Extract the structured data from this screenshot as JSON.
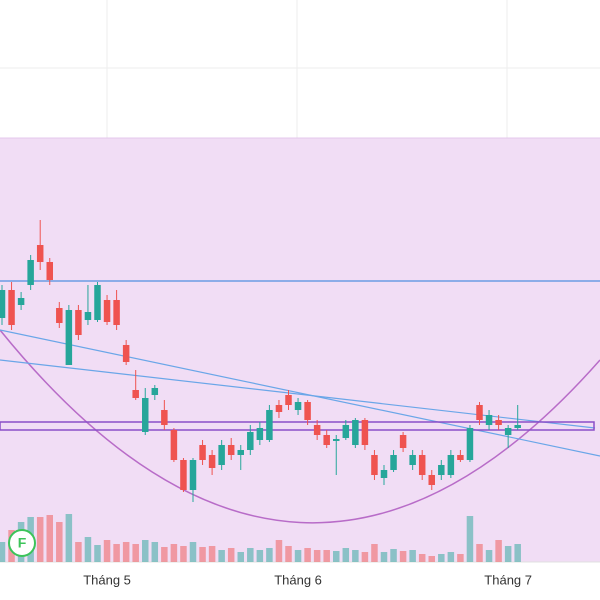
{
  "chart_data": {
    "type": "candlestick",
    "categories": [
      null,
      null,
      null,
      null,
      null,
      null,
      null,
      null,
      null,
      null,
      null,
      "Tháng 5",
      null,
      null,
      null,
      null,
      null,
      null,
      null,
      null,
      null,
      null,
      null,
      null,
      null,
      null,
      null,
      null,
      null,
      null,
      null,
      "Tháng 6",
      null,
      null,
      null,
      null,
      null,
      null,
      null,
      null,
      null,
      null,
      null,
      null,
      null,
      null,
      null,
      null,
      null,
      null,
      null,
      null,
      null,
      "Tháng 7",
      null
    ],
    "open": [
      28.2,
      31.0,
      29.5,
      31.5,
      35.5,
      33.8,
      29.2,
      23.5,
      29.0,
      28.0,
      28.0,
      30.0,
      30.0,
      25.5,
      21.0,
      16.8,
      20.5,
      19.0,
      17.0,
      14.0,
      11.0,
      15.5,
      14.5,
      13.5,
      15.5,
      14.5,
      15.0,
      16.0,
      16.0,
      19.5,
      20.5,
      19.0,
      19.8,
      17.5,
      16.5,
      15.9,
      16.2,
      15.5,
      18.0,
      14.5,
      12.2,
      13.0,
      16.5,
      13.5,
      14.5,
      12.5,
      12.5,
      12.5,
      14.5,
      14.0,
      19.5,
      17.5,
      18.0,
      16.5,
      17.2
    ],
    "high": [
      31.5,
      31.8,
      30.8,
      34.5,
      38.0,
      34.2,
      29.8,
      29.5,
      29.5,
      31.5,
      31.8,
      30.5,
      31.0,
      26.0,
      23.0,
      21.2,
      21.5,
      20.0,
      17.2,
      14.2,
      14.2,
      16.0,
      15.0,
      16.0,
      16.2,
      15.5,
      17.5,
      17.8,
      19.5,
      20.0,
      21.0,
      20.2,
      20.0,
      18.0,
      17.0,
      16.5,
      18.0,
      18.2,
      18.2,
      15.0,
      13.5,
      15.0,
      16.8,
      15.0,
      15.0,
      13.0,
      14.0,
      15.0,
      15.0,
      17.5,
      19.8,
      19.0,
      18.5,
      17.5,
      19.5
    ],
    "low": [
      27.5,
      27.0,
      29.0,
      31.0,
      33.0,
      31.5,
      27.2,
      23.5,
      26.0,
      27.5,
      27.8,
      27.5,
      27.0,
      23.5,
      20.0,
      16.5,
      20.0,
      17.0,
      13.8,
      10.8,
      9.8,
      13.5,
      12.5,
      13.0,
      14.0,
      13.0,
      14.5,
      15.5,
      15.8,
      18.2,
      19.0,
      18.5,
      17.5,
      16.0,
      15.2,
      12.5,
      16.0,
      15.2,
      15.0,
      12.0,
      11.5,
      12.8,
      14.8,
      13.0,
      12.0,
      11.0,
      12.0,
      12.2,
      13.8,
      13.8,
      17.5,
      17.0,
      17.0,
      15.2,
      17.0
    ],
    "close": [
      31.0,
      27.5,
      30.2,
      34.0,
      33.8,
      32.0,
      27.7,
      29.0,
      26.5,
      28.8,
      31.5,
      27.8,
      27.5,
      23.8,
      20.2,
      20.2,
      21.2,
      17.5,
      14.0,
      11.0,
      14.0,
      14.0,
      13.2,
      15.5,
      14.5,
      15.0,
      16.8,
      17.2,
      19.0,
      18.8,
      19.5,
      19.8,
      18.0,
      16.5,
      15.5,
      16.1,
      17.5,
      18.0,
      15.5,
      12.5,
      13.0,
      14.5,
      15.2,
      14.5,
      12.5,
      11.5,
      13.5,
      14.5,
      14.0,
      17.2,
      18.0,
      18.5,
      17.5,
      17.2,
      17.5
    ],
    "volume": [
      20,
      32,
      40,
      45,
      45,
      47,
      40,
      48,
      20,
      25,
      17,
      22,
      18,
      20,
      18,
      22,
      20,
      15,
      18,
      16,
      20,
      15,
      16,
      12,
      14,
      10,
      14,
      12,
      14,
      22,
      16,
      12,
      14,
      12,
      12,
      11,
      14,
      12,
      10,
      18,
      10,
      13,
      11,
      12,
      8,
      6,
      8,
      10,
      8,
      46,
      18,
      12,
      22,
      16,
      18
    ],
    "ylim": [
      0,
      60
    ],
    "vlim": [
      0,
      100
    ],
    "up_color": "#26a69a",
    "down_color": "#ef5350",
    "indicator": "F"
  }
}
